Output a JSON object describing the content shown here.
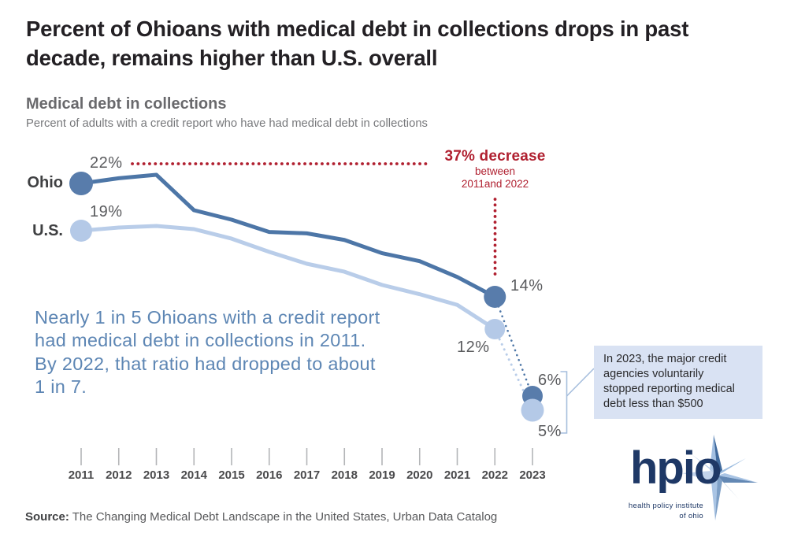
{
  "header": {
    "title_lines": [
      "Percent of Ohioans with medical debt in collections drops in past",
      "decade, remains higher than U.S. overall"
    ],
    "chart_title": "Medical debt in collections",
    "chart_subtitle": "Percent of adults with a credit report who have had medical debt in collections"
  },
  "chart_data": {
    "type": "line",
    "title": "Medical debt in collections",
    "subtitle": "Percent of adults with a credit report who have had medical debt in collections",
    "categories": [
      "2011",
      "2012",
      "2013",
      "2014",
      "2015",
      "2016",
      "2017",
      "2018",
      "2019",
      "2020",
      "2021",
      "2022",
      "2023"
    ],
    "series": [
      {
        "name": "Ohio",
        "color": "#4d76a7",
        "dot_color": "#587cab",
        "values": [
          22,
          22.3,
          22.5,
          20.3,
          19.7,
          18.9,
          18.8,
          18.3,
          17.3,
          16.7,
          15.5,
          14,
          6
        ]
      },
      {
        "name": "U.S.",
        "color": "#b9cde9",
        "dot_color": "#b4c9e7",
        "values": [
          19,
          19.2,
          19.3,
          19.1,
          18.4,
          17.4,
          16.5,
          15.9,
          14.9,
          14.2,
          13.5,
          12,
          5
        ]
      }
    ],
    "labeled_points": [
      {
        "series": "Ohio",
        "year": "2011",
        "text": "22%"
      },
      {
        "series": "U.S.",
        "year": "2011",
        "text": "19%"
      },
      {
        "series": "Ohio",
        "year": "2022",
        "text": "14%"
      },
      {
        "series": "U.S.",
        "year": "2022",
        "text": "12%"
      },
      {
        "series": "Ohio",
        "year": "2023",
        "text": "6%"
      },
      {
        "series": "U.S.",
        "year": "2023",
        "text": "5%"
      }
    ],
    "marker_years": [
      "2011",
      "2022",
      "2023"
    ],
    "dashed_segment": {
      "from": "2022",
      "to": "2023"
    },
    "ylim": [
      4,
      24
    ],
    "grid": false,
    "legend_position": "inline-left",
    "xlabel": "",
    "ylabel": "Percent of adults with a credit report who have had medical debt in collections"
  },
  "annotations": {
    "decrease_title": "37% decrease",
    "decrease_line2": "between",
    "decrease_line3": "2011and 2022",
    "decrease_color": "#b02030",
    "narrative_lines": [
      "Nearly 1 in 5 Ohioans with a credit report",
      "had medical debt in collections in 2011.",
      "By 2022, that ratio had dropped to about",
      "1 in 7."
    ],
    "callout_lines": [
      "In 2023, the major credit",
      "agencies voluntarily",
      "stopped reporting medical",
      "debt less than $500"
    ],
    "callout_bg": "#d9e2f3"
  },
  "footer": {
    "source_label": "Source:",
    "source_text": " The Changing Medical Debt Landscape in the United States, Urban Data Catalog"
  },
  "logo": {
    "acronym": "hpio",
    "line1": "health policy institute",
    "line2": "of ohio",
    "navy": "#1e3866"
  }
}
